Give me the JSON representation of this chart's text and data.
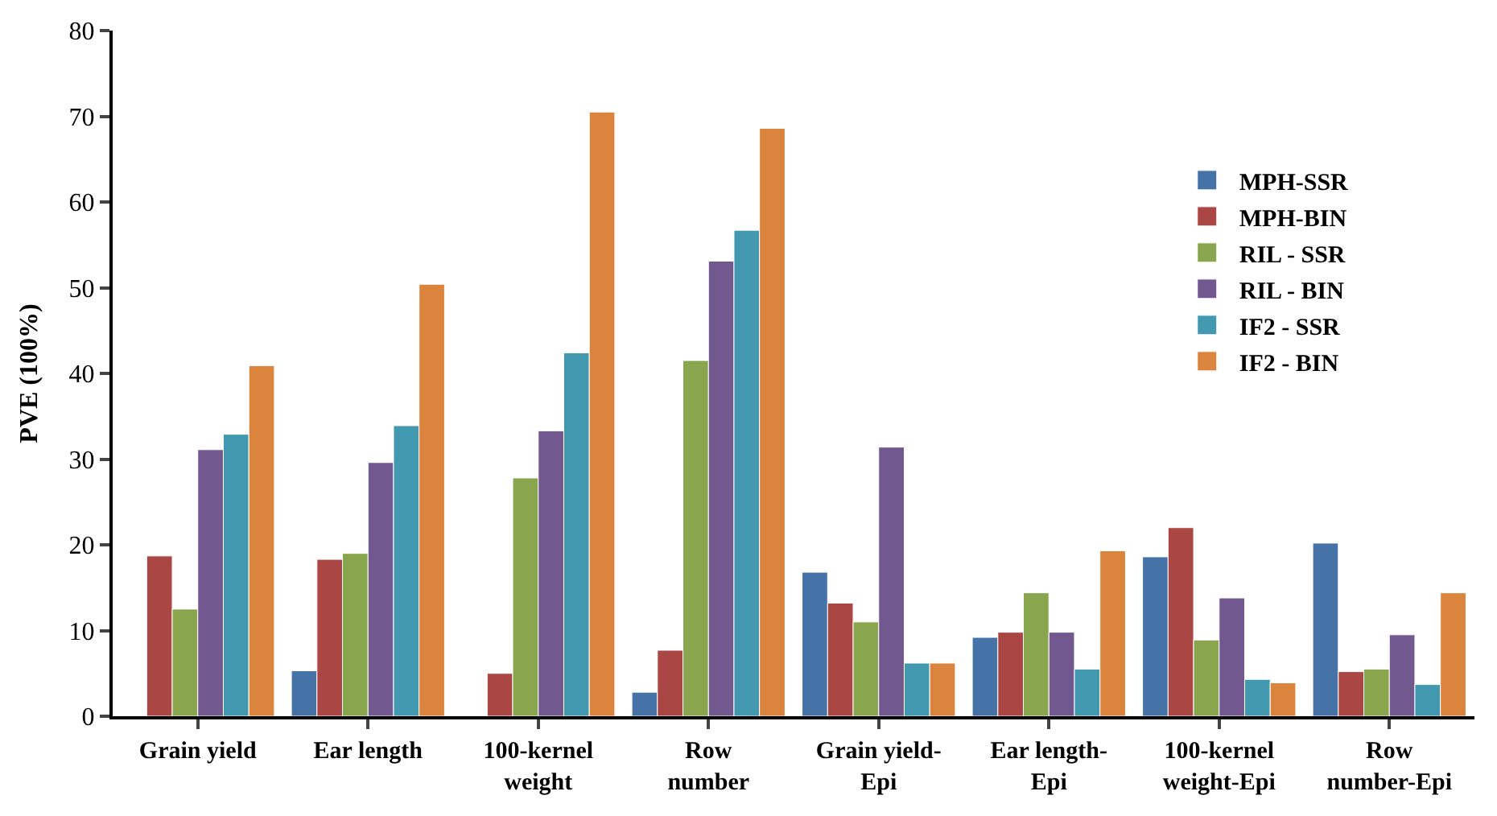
{
  "chart_data": {
    "type": "bar",
    "ylabel": "PVE (100%)",
    "categories": [
      "Grain yield",
      "Ear length",
      "100-kernel\nweight",
      "Row\nnumber",
      "Grain yield-\nEpi",
      "Ear length-\nEpi",
      "100-kernel\nweight-Epi",
      "Row\nnumber-Epi"
    ],
    "series": [
      {
        "name": "MPH-SSR",
        "color": "#4572a7",
        "values": [
          null,
          5.3,
          null,
          2.8,
          16.8,
          9.2,
          18.6,
          20.2
        ]
      },
      {
        "name": "MPH-BIN",
        "color": "#aa4643",
        "values": [
          18.7,
          18.3,
          5.0,
          7.7,
          13.2,
          9.8,
          22.0,
          5.2
        ]
      },
      {
        "name": "RIL - SSR",
        "color": "#89a54e",
        "values": [
          12.5,
          19.0,
          27.8,
          41.5,
          11.0,
          14.4,
          8.9,
          5.5
        ]
      },
      {
        "name": "RIL - BIN",
        "color": "#71588f",
        "values": [
          31.1,
          29.6,
          33.3,
          53.1,
          31.4,
          9.8,
          13.8,
          9.5
        ]
      },
      {
        "name": "IF2 - SSR",
        "color": "#4198af",
        "values": [
          32.9,
          33.9,
          42.4,
          56.7,
          6.2,
          5.5,
          4.3,
          3.7
        ]
      },
      {
        "name": "IF2 - BIN",
        "color": "#db843d",
        "values": [
          40.9,
          50.4,
          70.5,
          68.6,
          6.2,
          19.3,
          3.9,
          14.4
        ]
      }
    ],
    "ylim": [
      0,
      80
    ],
    "yticks": [
      0,
      10,
      20,
      30,
      40,
      50,
      60,
      70,
      80
    ],
    "legend": "right"
  }
}
